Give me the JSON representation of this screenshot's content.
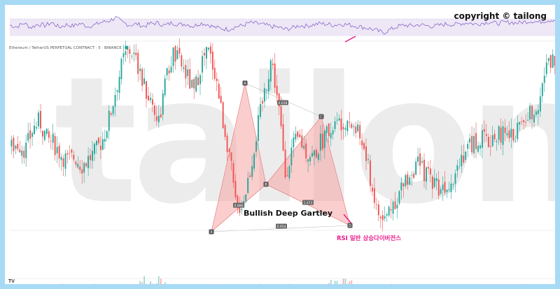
{
  "header": {
    "symbol": "Ethereum / TetherUS PERPETUAL CONTRACT · 5 · BINANCE",
    "copyright": "copyright © tailong"
  },
  "watermark": "tailong",
  "pattern": {
    "title": "Bullish Deep Gartley",
    "rsi_note": "RSI 일반 상승다이버전스",
    "points": [
      {
        "label": "X",
        "price": 0.0
      },
      {
        "label": "A",
        "price": 1.0
      },
      {
        "label": "B",
        "price": 0.28
      },
      {
        "label": "C",
        "price": 0.74
      },
      {
        "label": "D",
        "price": 0.02
      }
    ],
    "ratios": {
      "XB": "0.886",
      "AC": "0.638",
      "BD": "1.473",
      "XD": "0.954"
    }
  },
  "footer": {
    "tv_mark": "TV"
  },
  "colors": {
    "up": "#26a69a",
    "down": "#ef5350",
    "pattern_fill": "#f7a6a6",
    "rsi_line": "#7e57c2",
    "rsi_band": "#ede7f6",
    "frame": "#a7daf5",
    "accent": "#e91e8c"
  },
  "chart_data": {
    "type": "candlestick",
    "title": "",
    "xlabel": "",
    "ylabel": "",
    "close_path": [
      0.58,
      0.6,
      0.57,
      0.66,
      0.7,
      0.62,
      0.6,
      0.55,
      0.52,
      0.54,
      0.5,
      0.53,
      0.56,
      0.62,
      0.72,
      0.86,
      0.98,
      1.02,
      0.94,
      0.84,
      0.78,
      0.7,
      0.88,
      1.0,
      0.96,
      0.9,
      0.82,
      0.96,
      1.01,
      0.92,
      0.72,
      0.56,
      0.3,
      0.34,
      0.48,
      0.66,
      0.82,
      0.98,
      0.78,
      0.46,
      0.58,
      0.62,
      0.56,
      0.54,
      0.6,
      0.65,
      0.68,
      0.7,
      0.72,
      0.66,
      0.6,
      0.46,
      0.3,
      0.24,
      0.32,
      0.36,
      0.42,
      0.48,
      0.5,
      0.46,
      0.44,
      0.4,
      0.42,
      0.46,
      0.54,
      0.58,
      0.6,
      0.62,
      0.6,
      0.64,
      0.64,
      0.62,
      0.66,
      0.7,
      0.74,
      0.78,
      0.92,
      0.98,
      0.94
    ],
    "rsi_path": [
      0.5,
      0.42,
      0.6,
      0.38,
      0.55,
      0.48,
      0.62,
      0.4,
      0.52,
      0.46,
      0.58,
      0.44,
      0.5,
      0.64,
      0.7,
      0.86,
      0.62,
      0.5,
      0.56,
      0.44,
      0.58,
      0.6,
      0.48,
      0.62,
      0.52,
      0.56,
      0.44,
      0.6,
      0.54,
      0.4,
      0.34,
      0.3,
      0.42,
      0.48,
      0.62,
      0.58,
      0.52,
      0.44,
      0.4,
      0.3,
      0.36,
      0.48,
      0.46,
      0.52,
      0.58,
      0.54,
      0.5,
      0.56,
      0.52,
      0.46,
      0.4,
      0.34,
      0.24,
      0.14,
      0.3,
      0.44,
      0.5,
      0.46,
      0.52,
      0.48,
      0.44,
      0.5,
      0.56,
      0.52,
      0.58,
      0.62,
      0.54,
      0.6,
      0.66,
      0.58,
      0.62,
      0.64,
      0.6,
      0.66,
      0.7,
      0.64,
      0.72,
      0.76,
      0.7
    ]
  }
}
